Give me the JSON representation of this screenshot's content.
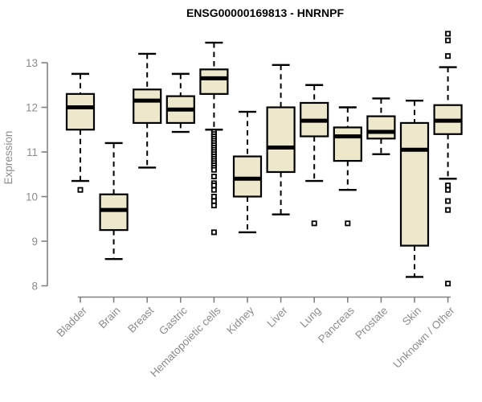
{
  "chart_data": {
    "type": "box",
    "title": "ENSG00000169813 - HNRNPF",
    "ylabel": "Expression",
    "xlabel": "",
    "ylim": [
      7.9,
      13.7
    ],
    "yticks": [
      8,
      9,
      10,
      11,
      12,
      13
    ],
    "grid": false,
    "legend_position": "none",
    "categories": [
      "Bladder",
      "Brain",
      "Breast",
      "Gastric",
      "Hematopoietic cells",
      "Kidney",
      "Liver",
      "Lung",
      "Pancreas",
      "Prostate",
      "Skin",
      "Unknown / Other"
    ],
    "boxes": [
      {
        "category": "Bladder",
        "whisker_low": 10.35,
        "q1": 11.5,
        "median": 12.0,
        "q3": 12.3,
        "whisker_high": 12.75,
        "outliers": [
          10.15
        ]
      },
      {
        "category": "Brain",
        "whisker_low": 8.6,
        "q1": 9.25,
        "median": 9.7,
        "q3": 10.05,
        "whisker_high": 11.2,
        "outliers": []
      },
      {
        "category": "Breast",
        "whisker_low": 10.65,
        "q1": 11.65,
        "median": 12.15,
        "q3": 12.4,
        "whisker_high": 13.2,
        "outliers": []
      },
      {
        "category": "Gastric",
        "whisker_low": 11.45,
        "q1": 11.65,
        "median": 11.95,
        "q3": 12.25,
        "whisker_high": 12.75,
        "outliers": []
      },
      {
        "category": "Hematopoietic cells",
        "whisker_low": 11.5,
        "q1": 12.3,
        "median": 12.65,
        "q3": 12.85,
        "whisker_high": 13.45,
        "outliers": [
          11.45,
          11.4,
          11.35,
          11.3,
          11.25,
          11.2,
          11.15,
          11.1,
          11.05,
          11.0,
          10.95,
          10.9,
          10.85,
          10.8,
          10.75,
          10.7,
          10.65,
          10.6,
          10.45,
          10.3,
          10.25,
          10.15,
          10.0,
          9.9,
          9.8,
          9.2
        ]
      },
      {
        "category": "Kidney",
        "whisker_low": 9.2,
        "q1": 10.0,
        "median": 10.4,
        "q3": 10.9,
        "whisker_high": 11.9,
        "outliers": []
      },
      {
        "category": "Liver",
        "whisker_low": 9.6,
        "q1": 10.55,
        "median": 11.1,
        "q3": 12.0,
        "whisker_high": 12.95,
        "outliers": []
      },
      {
        "category": "Lung",
        "whisker_low": 10.35,
        "q1": 11.35,
        "median": 11.7,
        "q3": 12.1,
        "whisker_high": 12.5,
        "outliers": [
          9.4
        ]
      },
      {
        "category": "Pancreas",
        "whisker_low": 10.15,
        "q1": 10.8,
        "median": 11.35,
        "q3": 11.55,
        "whisker_high": 12.0,
        "outliers": [
          9.4
        ]
      },
      {
        "category": "Prostate",
        "whisker_low": 10.95,
        "q1": 11.3,
        "median": 11.45,
        "q3": 11.8,
        "whisker_high": 12.2,
        "outliers": []
      },
      {
        "category": "Skin",
        "whisker_low": 8.2,
        "q1": 8.9,
        "median": 11.05,
        "q3": 11.65,
        "whisker_high": 12.15,
        "outliers": []
      },
      {
        "category": "Unknown / Other",
        "whisker_low": 10.4,
        "q1": 11.4,
        "median": 11.7,
        "q3": 12.05,
        "whisker_high": 12.9,
        "outliers": [
          13.65,
          13.5,
          13.15,
          10.25,
          10.15,
          9.9,
          9.7,
          8.05
        ]
      }
    ],
    "colors": {
      "box_fill": "#EDE8CC",
      "box_stroke": "#000000",
      "median": "#000000",
      "whisker": "#000000",
      "outlier_stroke": "#000000",
      "axis": "#828282",
      "tick_label": "#8C8C8C",
      "title": "#000000",
      "background": "#FFFFFF"
    }
  }
}
